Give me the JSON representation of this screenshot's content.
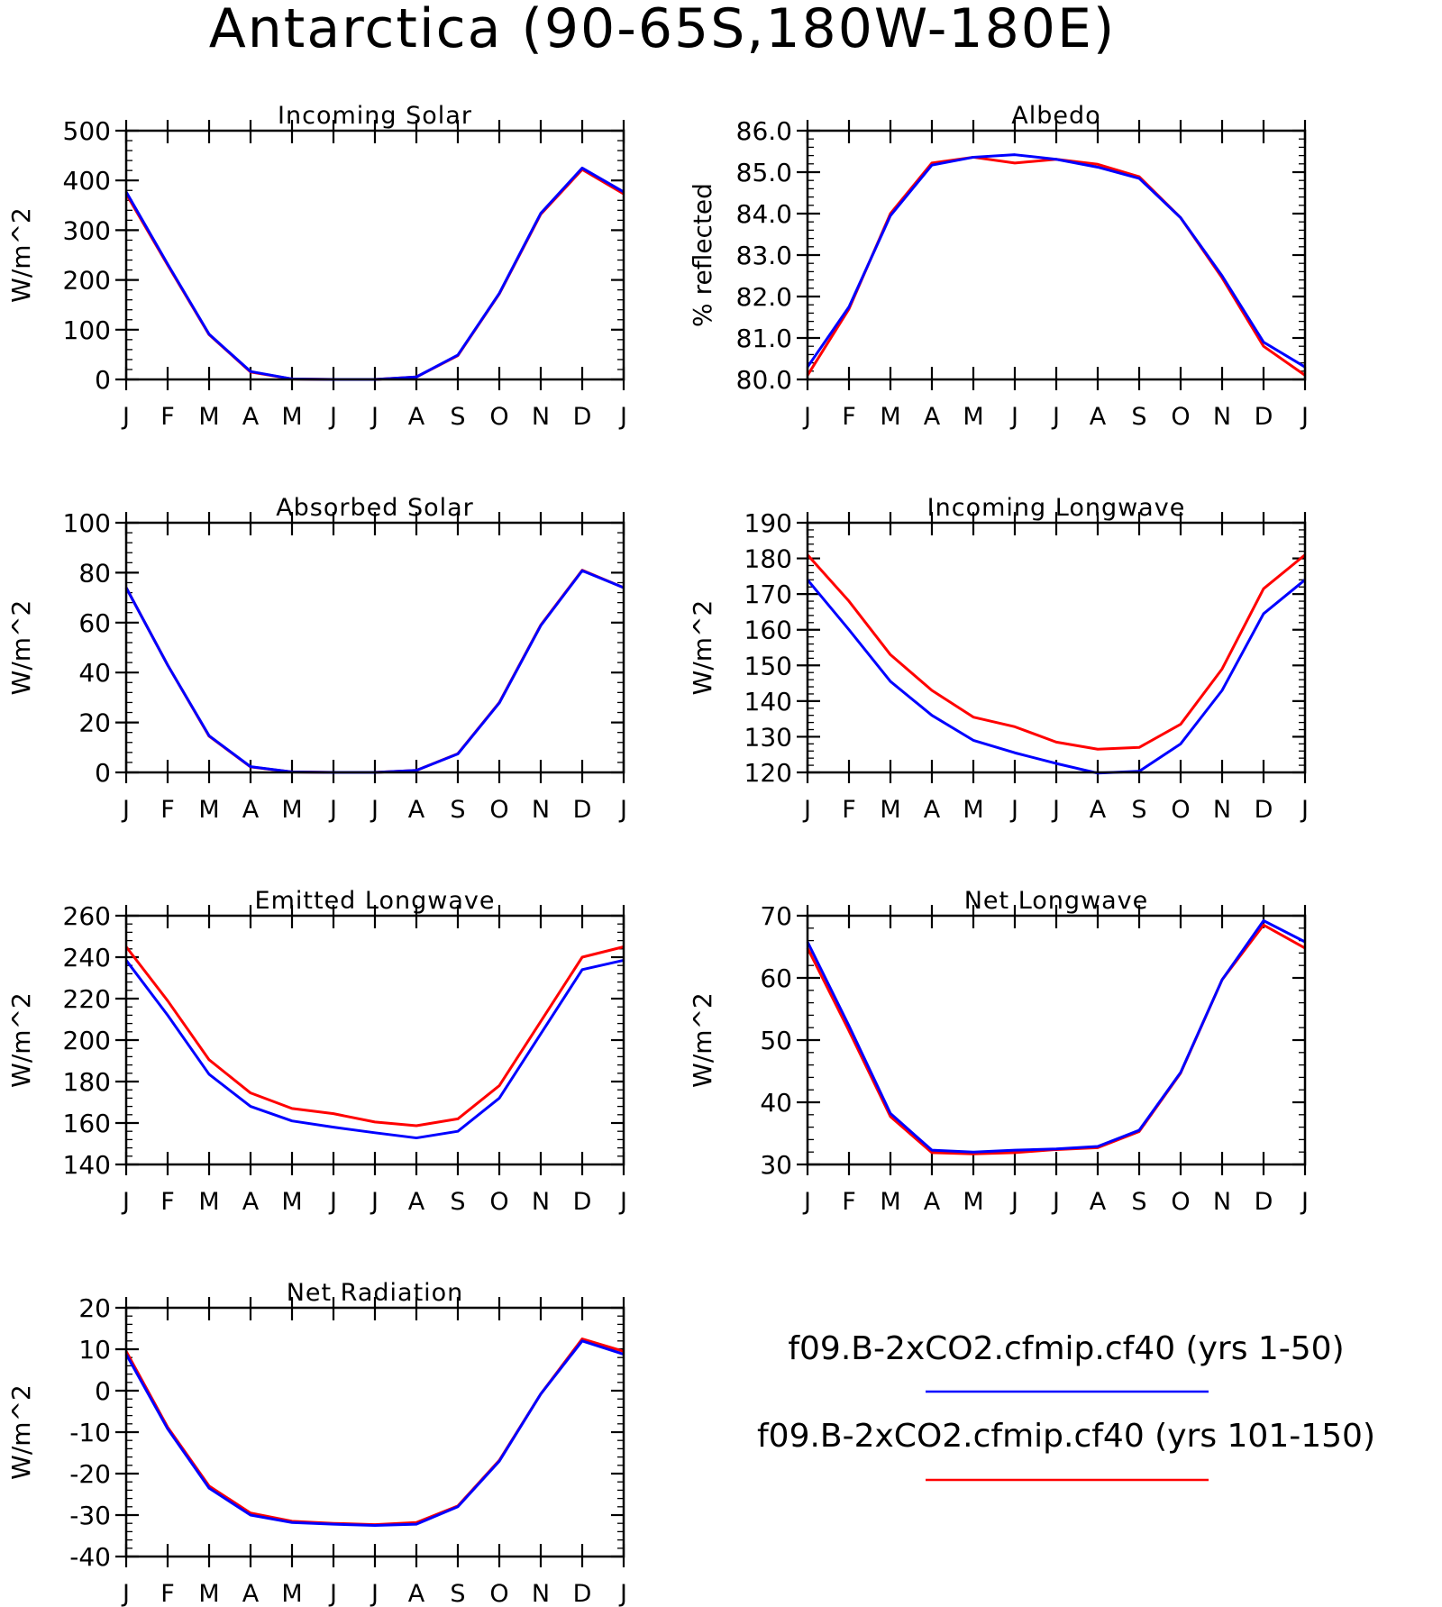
{
  "page_title": "Antarctica (90-65S,180W-180E)",
  "months": [
    "J",
    "F",
    "M",
    "A",
    "M",
    "J",
    "J",
    "A",
    "S",
    "O",
    "N",
    "D",
    "J"
  ],
  "legend": {
    "entries": [
      {
        "label": "f09.B-2xCO2.cfmip.cf40 (yrs 1-50)",
        "color": "#0000ff"
      },
      {
        "label": "f09.B-2xCO2.cfmip.cf40 (yrs 101-150)",
        "color": "#ff0000"
      }
    ]
  },
  "chart_data": [
    {
      "type": "line",
      "title": "Incoming Solar",
      "ylabel": "W/m^2",
      "ylim": [
        0,
        500
      ],
      "yticks": [
        0,
        100,
        200,
        300,
        400,
        500
      ],
      "ytick_labels": [
        "0",
        "100",
        "200",
        "300",
        "400",
        "500"
      ],
      "series": [
        {
          "color": "#ff0000",
          "values": [
            373,
            230,
            90,
            15,
            1,
            0,
            0,
            5,
            48,
            172,
            332,
            422,
            373
          ]
        },
        {
          "color": "#0000ff",
          "values": [
            377,
            232,
            91,
            16,
            1,
            0,
            0,
            5,
            49,
            173,
            334,
            425,
            377
          ]
        }
      ]
    },
    {
      "type": "line",
      "title": "Albedo",
      "ylabel": "% reflected",
      "ylim": [
        80,
        86
      ],
      "yticks": [
        80,
        81,
        82,
        83,
        84,
        85,
        86
      ],
      "ytick_labels": [
        "80.0",
        "81.0",
        "82.0",
        "83.0",
        "84.0",
        "85.0",
        "86.0"
      ],
      "series": [
        {
          "color": "#ff0000",
          "values": [
            80.1,
            81.7,
            84.0,
            85.22,
            85.36,
            85.22,
            85.31,
            85.19,
            84.89,
            83.9,
            82.45,
            80.8,
            80.1
          ]
        },
        {
          "color": "#0000ff",
          "values": [
            80.3,
            81.75,
            83.95,
            85.17,
            85.36,
            85.42,
            85.31,
            85.12,
            84.85,
            83.9,
            82.5,
            80.9,
            80.3
          ]
        }
      ]
    },
    {
      "type": "line",
      "title": "Absorbed Solar",
      "ylabel": "W/m^2",
      "ylim": [
        0,
        100
      ],
      "yticks": [
        0,
        20,
        40,
        60,
        80,
        100
      ],
      "ytick_labels": [
        "0",
        "20",
        "40",
        "60",
        "80",
        "100"
      ],
      "series": [
        {
          "color": "#ff0000",
          "values": [
            74,
            43,
            14.5,
            2.2,
            0.2,
            0,
            0,
            0.8,
            7.5,
            28,
            59,
            81,
            74
          ]
        },
        {
          "color": "#0000ff",
          "values": [
            74,
            43,
            14.7,
            2.3,
            0.2,
            0,
            0,
            0.8,
            7.4,
            27.8,
            58.8,
            80.8,
            74
          ]
        }
      ]
    },
    {
      "type": "line",
      "title": "Incoming Longwave",
      "ylabel": "W/m^2",
      "ylim": [
        120,
        190
      ],
      "yticks": [
        120,
        130,
        140,
        150,
        160,
        170,
        180,
        190
      ],
      "ytick_labels": [
        "120",
        "130",
        "140",
        "150",
        "160",
        "170",
        "180",
        "190"
      ],
      "series": [
        {
          "color": "#ff0000",
          "values": [
            181,
            168,
            153,
            143,
            135.5,
            132.8,
            128.5,
            126.5,
            127,
            133.5,
            149,
            171.5,
            181
          ]
        },
        {
          "color": "#0000ff",
          "values": [
            174,
            160,
            145.5,
            136,
            129,
            125.5,
            122.5,
            119.8,
            120.3,
            128,
            143,
            164.5,
            174
          ]
        }
      ]
    },
    {
      "type": "line",
      "title": "Emitted Longwave",
      "ylabel": "W/m^2",
      "ylim": [
        140,
        260
      ],
      "yticks": [
        140,
        160,
        180,
        200,
        220,
        240,
        260
      ],
      "ytick_labels": [
        "140",
        "160",
        "180",
        "200",
        "220",
        "240",
        "260"
      ],
      "series": [
        {
          "color": "#ff0000",
          "values": [
            245,
            219,
            190.5,
            174.5,
            167,
            164.5,
            160.5,
            158.7,
            162,
            178,
            209,
            240,
            245
          ]
        },
        {
          "color": "#0000ff",
          "values": [
            238.5,
            212,
            183.5,
            168,
            161,
            158,
            155.3,
            152.8,
            156,
            172,
            203,
            234,
            238.5
          ]
        }
      ]
    },
    {
      "type": "line",
      "title": "Net Longwave",
      "ylabel": "W/m^2",
      "ylim": [
        30,
        70
      ],
      "yticks": [
        30,
        40,
        50,
        60,
        70
      ],
      "ytick_labels": [
        "30",
        "40",
        "50",
        "60",
        "70"
      ],
      "series": [
        {
          "color": "#ff0000",
          "values": [
            64.8,
            51.5,
            37.7,
            31.9,
            31.7,
            31.9,
            32.4,
            32.7,
            35.3,
            44.7,
            59.7,
            68.5,
            64.8
          ]
        },
        {
          "color": "#0000ff",
          "values": [
            65.8,
            52.3,
            38.2,
            32.3,
            32.0,
            32.3,
            32.5,
            32.9,
            35.5,
            44.8,
            59.7,
            69.2,
            65.8
          ]
        }
      ]
    },
    {
      "type": "line",
      "title": "Net Radiation",
      "ylabel": "W/m^2",
      "ylim": [
        -40,
        20
      ],
      "yticks": [
        -40,
        -30,
        -20,
        -10,
        0,
        10,
        20
      ],
      "ytick_labels": [
        "-40",
        "-30",
        "-20",
        "-10",
        "0",
        "10",
        "20"
      ],
      "series": [
        {
          "color": "#ff0000",
          "values": [
            9.5,
            -8.8,
            -23,
            -29.5,
            -31.5,
            -32,
            -32.3,
            -31.8,
            -27.8,
            -16.8,
            -0.8,
            12.5,
            9.5
          ]
        },
        {
          "color": "#0000ff",
          "values": [
            8.8,
            -9.2,
            -23.5,
            -30,
            -31.8,
            -32.2,
            -32.5,
            -32.2,
            -28,
            -17,
            -0.8,
            12,
            8.8
          ]
        }
      ]
    }
  ]
}
